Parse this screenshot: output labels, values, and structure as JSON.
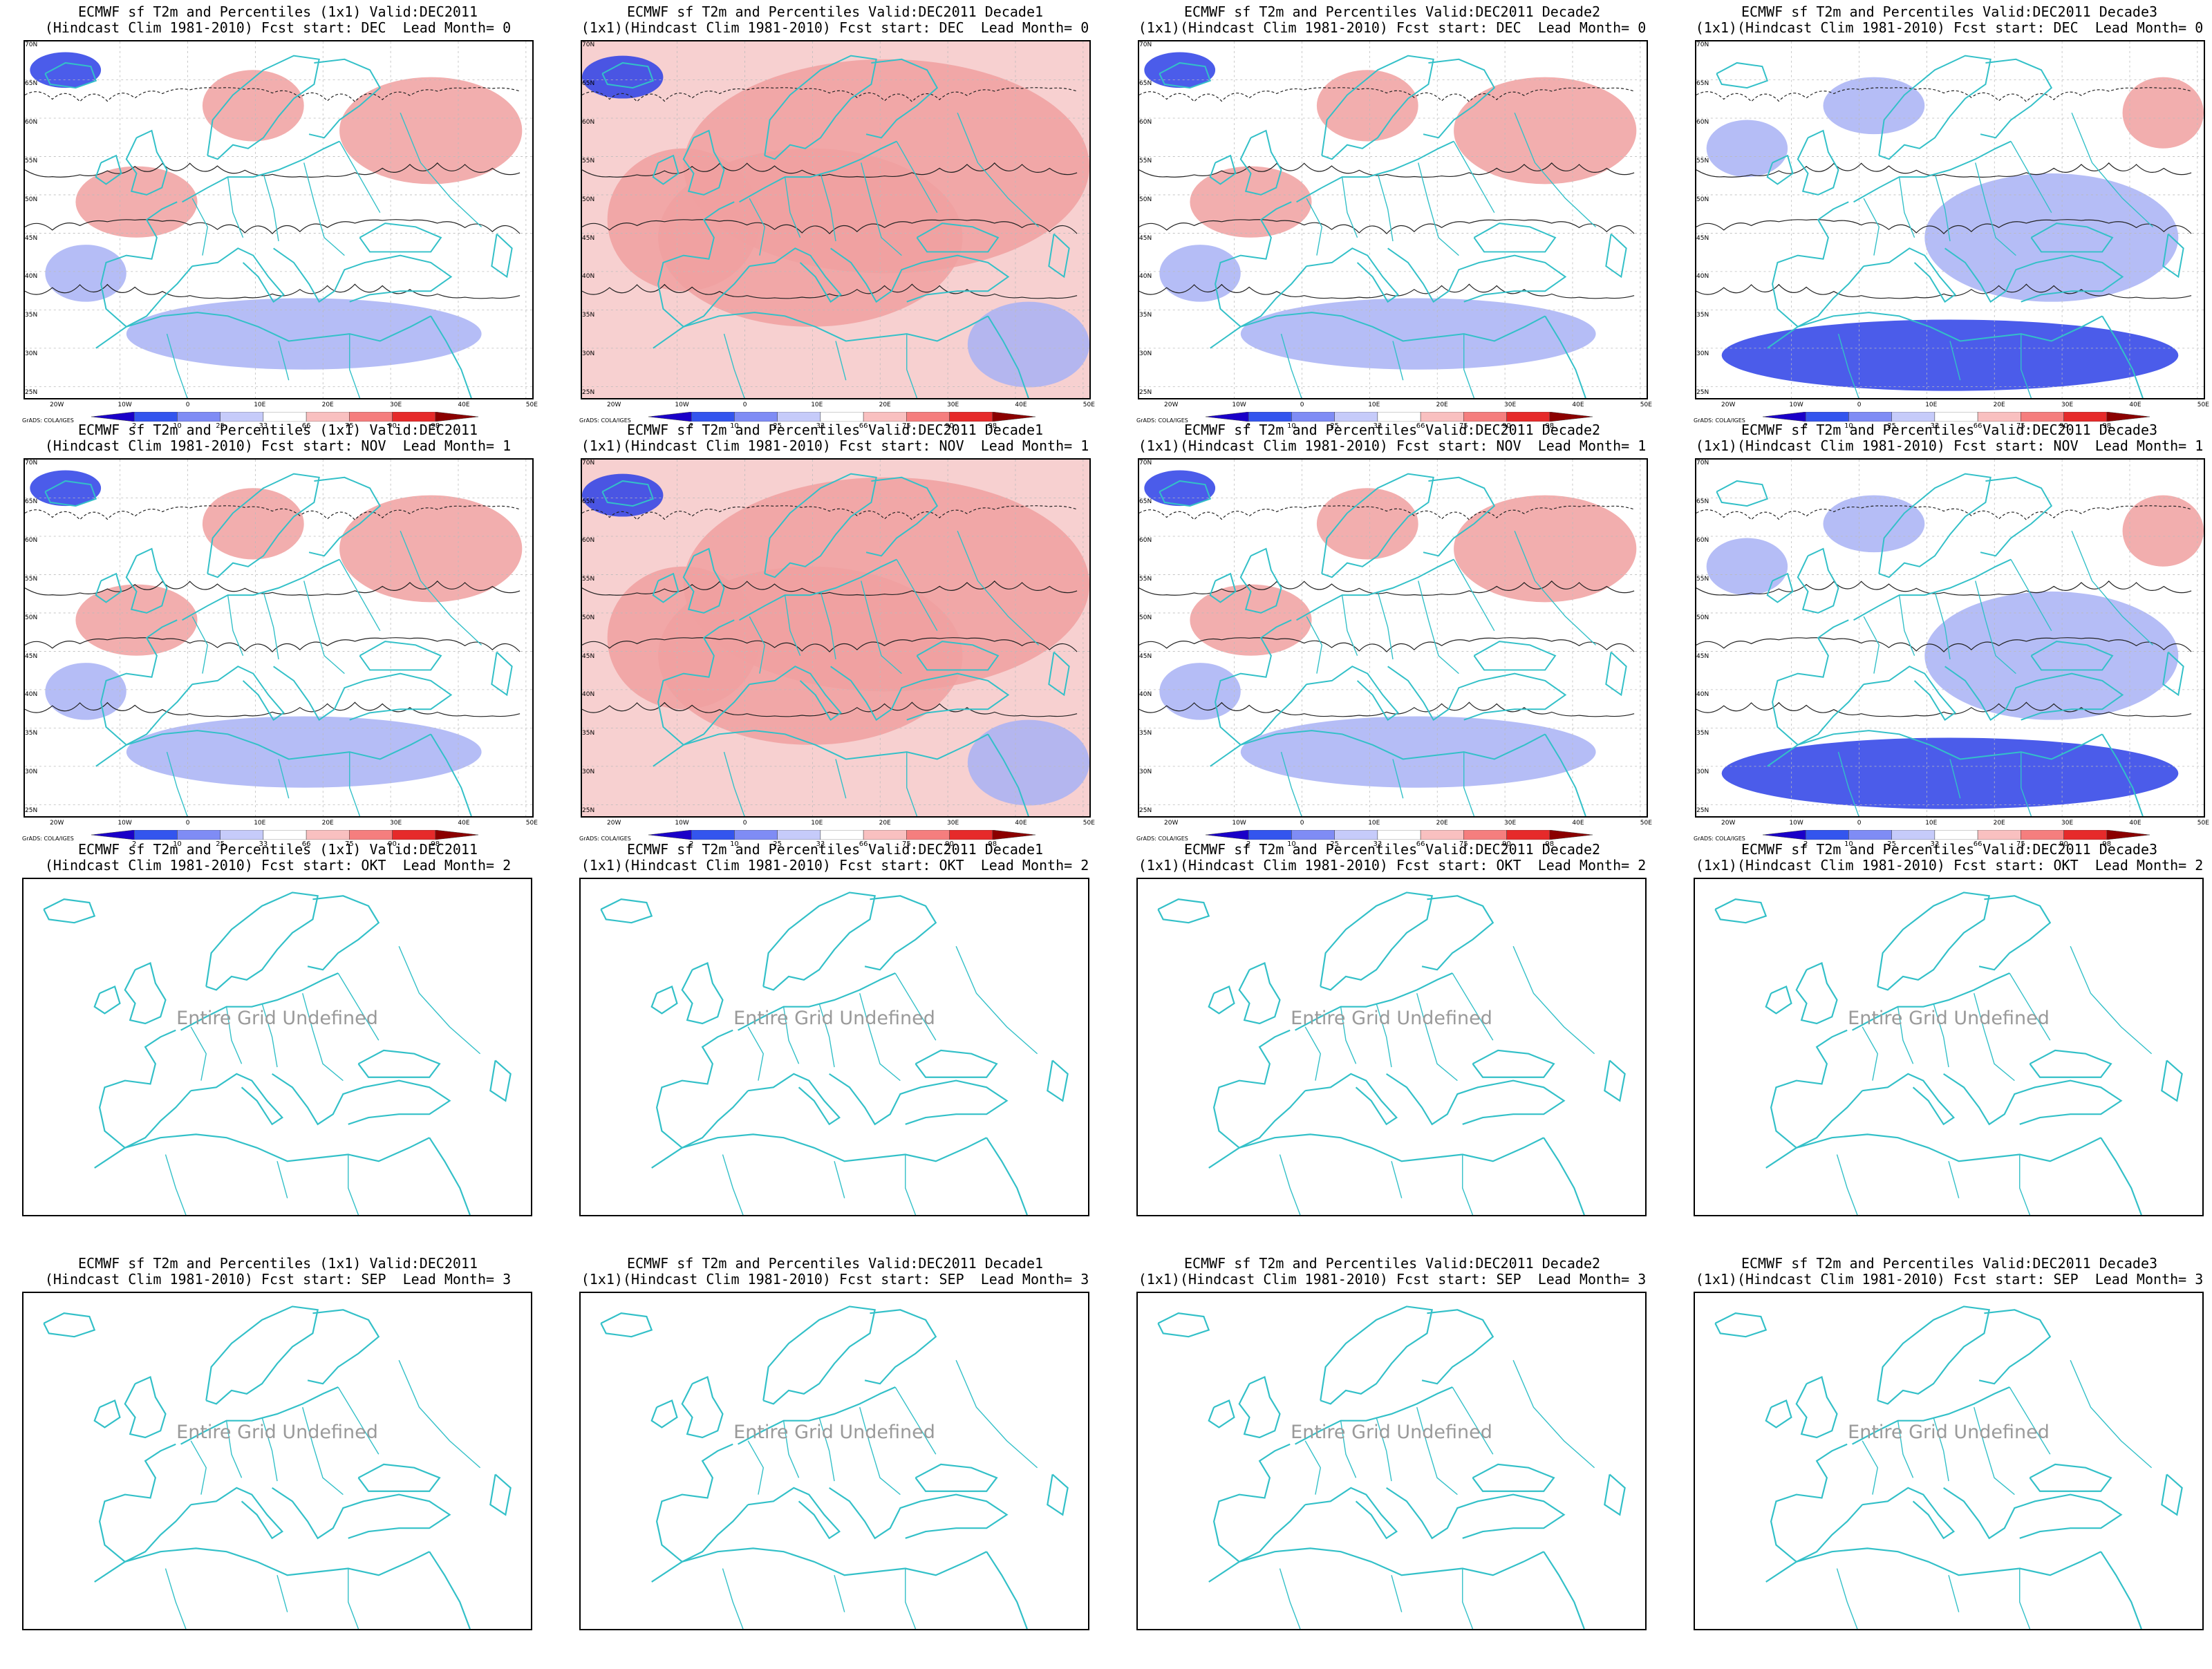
{
  "grads_label": "GrADS: COLA/IGES",
  "undefined_text": "Entire Grid Undefined",
  "lon_labels": [
    "20W",
    "10W",
    "0",
    "10E",
    "20E",
    "30E",
    "40E",
    "50E"
  ],
  "lat_labels": [
    "70N",
    "65N",
    "60N",
    "55N",
    "50N",
    "45N",
    "40N",
    "35N",
    "30N",
    "25N"
  ],
  "colorbar": {
    "labels": [
      "2",
      "10",
      "25",
      "33",
      "66",
      "75",
      "90",
      "98"
    ],
    "colors": [
      "#1a00c8",
      "#3355ee",
      "#7f8cf5",
      "#c6cbfa",
      "#ffffff",
      "#f9c0c0",
      "#f57e7e",
      "#e62a2a",
      "#8b0000"
    ]
  },
  "map_colors": {
    "coast": "#33c0c8",
    "warm": "#f0a0a0",
    "cold": "#a8b2f4",
    "very_cold": "#2b3fe6"
  },
  "panels": [
    {
      "id": "r1c1",
      "title1": "ECMWF sf T2m and Percentiles (1x1) Valid:DEC2011",
      "title2": "(Hindcast Clim 1981-2010) Fcst start: DEC  Lead Month= 0",
      "type": "data",
      "tint": "mixed"
    },
    {
      "id": "r1c2",
      "title1": "ECMWF sf T2m and Percentiles Valid:DEC2011 Decade1",
      "title2": "(1x1)(Hindcast Clim 1981-2010) Fcst start: DEC  Lead Month= 0",
      "type": "data",
      "tint": "warm"
    },
    {
      "id": "r1c3",
      "title1": "ECMWF sf T2m and Percentiles Valid:DEC2011 Decade2",
      "title2": "(1x1)(Hindcast Clim 1981-2010) Fcst start: DEC  Lead Month= 0",
      "type": "data",
      "tint": "mixed"
    },
    {
      "id": "r1c4",
      "title1": "ECMWF sf T2m and Percentiles Valid:DEC2011 Decade3",
      "title2": "(1x1)(Hindcast Clim 1981-2010) Fcst start: DEC  Lead Month= 0",
      "type": "data",
      "tint": "cold"
    },
    {
      "id": "r2c1",
      "title1": "ECMWF sf T2m and Percentiles (1x1) Valid:DEC2011",
      "title2": "(Hindcast Clim 1981-2010) Fcst start: NOV  Lead Month= 1",
      "type": "data",
      "tint": "mixed"
    },
    {
      "id": "r2c2",
      "title1": "ECMWF sf T2m and Percentiles Valid:DEC2011 Decade1",
      "title2": "(1x1)(Hindcast Clim 1981-2010) Fcst start: NOV  Lead Month= 1",
      "type": "data",
      "tint": "warm"
    },
    {
      "id": "r2c3",
      "title1": "ECMWF sf T2m and Percentiles Valid:DEC2011 Decade2",
      "title2": "(1x1)(Hindcast Clim 1981-2010) Fcst start: NOV  Lead Month= 1",
      "type": "data",
      "tint": "mixed"
    },
    {
      "id": "r2c4",
      "title1": "ECMWF sf T2m and Percentiles Valid:DEC2011 Decade3",
      "title2": "(1x1)(Hindcast Clim 1981-2010) Fcst start: NOV  Lead Month= 1",
      "type": "data",
      "tint": "cold"
    },
    {
      "id": "r3c1",
      "title1": "ECMWF sf T2m and Percentiles (1x1) Valid:DEC2011",
      "title2": "(Hindcast Clim 1981-2010) Fcst start: OKT  Lead Month= 2",
      "type": "undefined"
    },
    {
      "id": "r3c2",
      "title1": "ECMWF sf T2m and Percentiles Valid:DEC2011 Decade1",
      "title2": "(1x1)(Hindcast Clim 1981-2010) Fcst start: OKT  Lead Month= 2",
      "type": "undefined"
    },
    {
      "id": "r3c3",
      "title1": "ECMWF sf T2m and Percentiles Valid:DEC2011 Decade2",
      "title2": "(1x1)(Hindcast Clim 1981-2010) Fcst start: OKT  Lead Month= 2",
      "type": "undefined"
    },
    {
      "id": "r3c4",
      "title1": "ECMWF sf T2m and Percentiles Valid:DEC2011 Decade3",
      "title2": "(1x1)(Hindcast Clim 1981-2010) Fcst start: OKT  Lead Month= 2",
      "type": "undefined"
    },
    {
      "id": "r4c1",
      "title1": "ECMWF sf T2m and Percentiles (1x1) Valid:DEC2011",
      "title2": "(Hindcast Clim 1981-2010) Fcst start: SEP  Lead Month= 3",
      "type": "undefined"
    },
    {
      "id": "r4c2",
      "title1": "ECMWF sf T2m and Percentiles Valid:DEC2011 Decade1",
      "title2": "(1x1)(Hindcast Clim 1981-2010) Fcst start: SEP  Lead Month= 3",
      "type": "undefined"
    },
    {
      "id": "r4c3",
      "title1": "ECMWF sf T2m and Percentiles Valid:DEC2011 Decade2",
      "title2": "(1x1)(Hindcast Clim 1981-2010) Fcst start: SEP  Lead Month= 3",
      "type": "undefined"
    },
    {
      "id": "r4c4",
      "title1": "ECMWF sf T2m and Percentiles Valid:DEC2011 Decade3",
      "title2": "(1x1)(Hindcast Clim 1981-2010) Fcst start: SEP  Lead Month= 3",
      "type": "undefined"
    }
  ]
}
